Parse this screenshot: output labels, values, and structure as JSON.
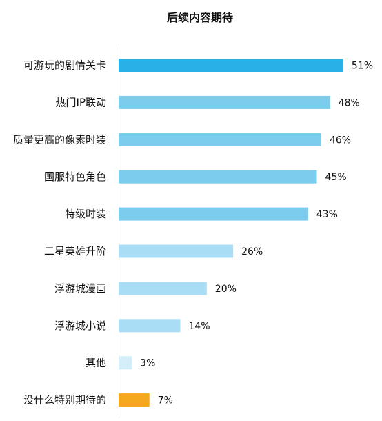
{
  "chart_data": {
    "type": "bar",
    "orientation": "horizontal",
    "title": "后续内容期待",
    "xlabel": "",
    "ylabel": "",
    "xlim": [
      0,
      55
    ],
    "grid": false,
    "legend": "none",
    "categories": [
      "可游玩的剧情关卡",
      "热门IP联动",
      "质量更高的像素时装",
      "国服特色角色",
      "特级时装",
      "二星英雄升阶",
      "浮游城漫画",
      "浮游城小说",
      "其他",
      "没什么特别期待的"
    ],
    "values": [
      51,
      48,
      46,
      45,
      43,
      26,
      20,
      14,
      3,
      7
    ],
    "value_labels": [
      "51%",
      "48%",
      "46%",
      "45%",
      "43%",
      "26%",
      "20%",
      "14%",
      "3%",
      "7%"
    ],
    "bar_colors": [
      "#29b0e6",
      "#7cccee",
      "#7cccee",
      "#7cccee",
      "#7cccee",
      "#a8ddf5",
      "#a8ddf5",
      "#a8ddf5",
      "#d4eefa",
      "#f4a81d"
    ]
  }
}
